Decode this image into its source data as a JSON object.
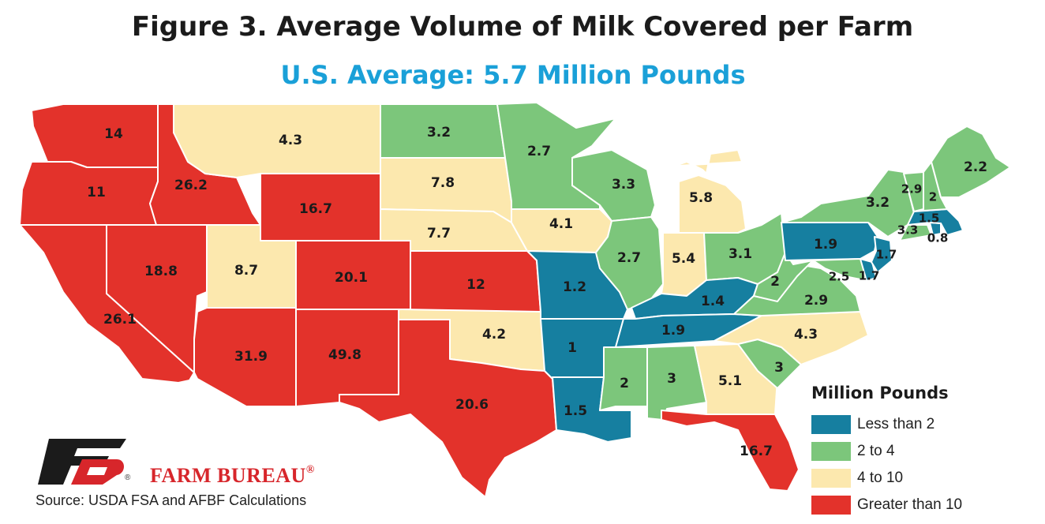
{
  "title": "Figure 3. Average Volume of Milk Covered per Farm",
  "subtitle": "U.S. Average: 5.7 Million Pounds",
  "legend": {
    "title": "Million Pounds",
    "items": [
      {
        "label": "Less than 2",
        "color": "#167fa0"
      },
      {
        "label": "2 to 4",
        "color": "#7cc67b"
      },
      {
        "label": "4 to 10",
        "color": "#fce8ae"
      },
      {
        "label": "Greater than 10",
        "color": "#e3322b"
      }
    ]
  },
  "brand": {
    "name": "FARM BUREAU",
    "registered": "®"
  },
  "source": "Source: USDA FSA and AFBF Calculations",
  "states": {
    "WA": {
      "value": "14",
      "category": "Greater than 10"
    },
    "OR": {
      "value": "11",
      "category": "Greater than 10"
    },
    "CA": {
      "value": "26.1",
      "category": "Greater than 10"
    },
    "NV": {
      "value": "18.8",
      "category": "Greater than 10"
    },
    "ID": {
      "value": "26.2",
      "category": "Greater than 10"
    },
    "MT": {
      "value": "4.3",
      "category": "4 to 10"
    },
    "WY": {
      "value": "16.7",
      "category": "Greater than 10"
    },
    "UT": {
      "value": "8.7",
      "category": "4 to 10"
    },
    "CO": {
      "value": "20.1",
      "category": "Greater than 10"
    },
    "AZ": {
      "value": "31.9",
      "category": "Greater than 10"
    },
    "NM": {
      "value": "49.8",
      "category": "Greater than 10"
    },
    "ND": {
      "value": "3.2",
      "category": "2 to 4"
    },
    "SD": {
      "value": "7.8",
      "category": "4 to 10"
    },
    "NE": {
      "value": "7.7",
      "category": "4 to 10"
    },
    "KS": {
      "value": "12",
      "category": "Greater than 10"
    },
    "OK": {
      "value": "4.2",
      "category": "4 to 10"
    },
    "TX": {
      "value": "20.6",
      "category": "Greater than 10"
    },
    "MN": {
      "value": "2.7",
      "category": "2 to 4"
    },
    "IA": {
      "value": "4.1",
      "category": "4 to 10"
    },
    "MO": {
      "value": "1.2",
      "category": "Less than 2"
    },
    "AR": {
      "value": "1",
      "category": "Less than 2"
    },
    "LA": {
      "value": "1.5",
      "category": "Less than 2"
    },
    "WI": {
      "value": "3.3",
      "category": "2 to 4"
    },
    "IL": {
      "value": "2.7",
      "category": "2 to 4"
    },
    "MI": {
      "value": "5.8",
      "category": "4 to 10"
    },
    "IN": {
      "value": "5.4",
      "category": "4 to 10"
    },
    "OH": {
      "value": "3.1",
      "category": "2 to 4"
    },
    "KY": {
      "value": "1.4",
      "category": "Less than 2"
    },
    "TN": {
      "value": "1.9",
      "category": "Less than 2"
    },
    "MS": {
      "value": "2",
      "category": "2 to 4"
    },
    "AL": {
      "value": "3",
      "category": "2 to 4"
    },
    "GA": {
      "value": "5.1",
      "category": "4 to 10"
    },
    "FL": {
      "value": "16.7",
      "category": "Greater than 10"
    },
    "SC": {
      "value": "3",
      "category": "2 to 4"
    },
    "NC": {
      "value": "4.3",
      "category": "4 to 10"
    },
    "VA": {
      "value": "2.9",
      "category": "2 to 4"
    },
    "WV": {
      "value": "2",
      "category": "2 to 4"
    },
    "PA": {
      "value": "1.9",
      "category": "Less than 2"
    },
    "NY": {
      "value": "3.2",
      "category": "2 to 4"
    },
    "VT": {
      "value": "2.9",
      "category": "2 to 4"
    },
    "NH": {
      "value": "2",
      "category": "2 to 4"
    },
    "ME": {
      "value": "2.2",
      "category": "2 to 4"
    },
    "MA": {
      "value": "1.5",
      "category": "Less than 2"
    },
    "CT": {
      "value": "3.3",
      "category": "2 to 4"
    },
    "RI": {
      "value": "0.8",
      "category": "Less than 2"
    },
    "NJ": {
      "value": "1.7",
      "category": "Less than 2"
    },
    "MD": {
      "value": "2.5",
      "category": "2 to 4"
    },
    "DE": {
      "value": "1.7",
      "category": "Less than 2"
    }
  }
}
